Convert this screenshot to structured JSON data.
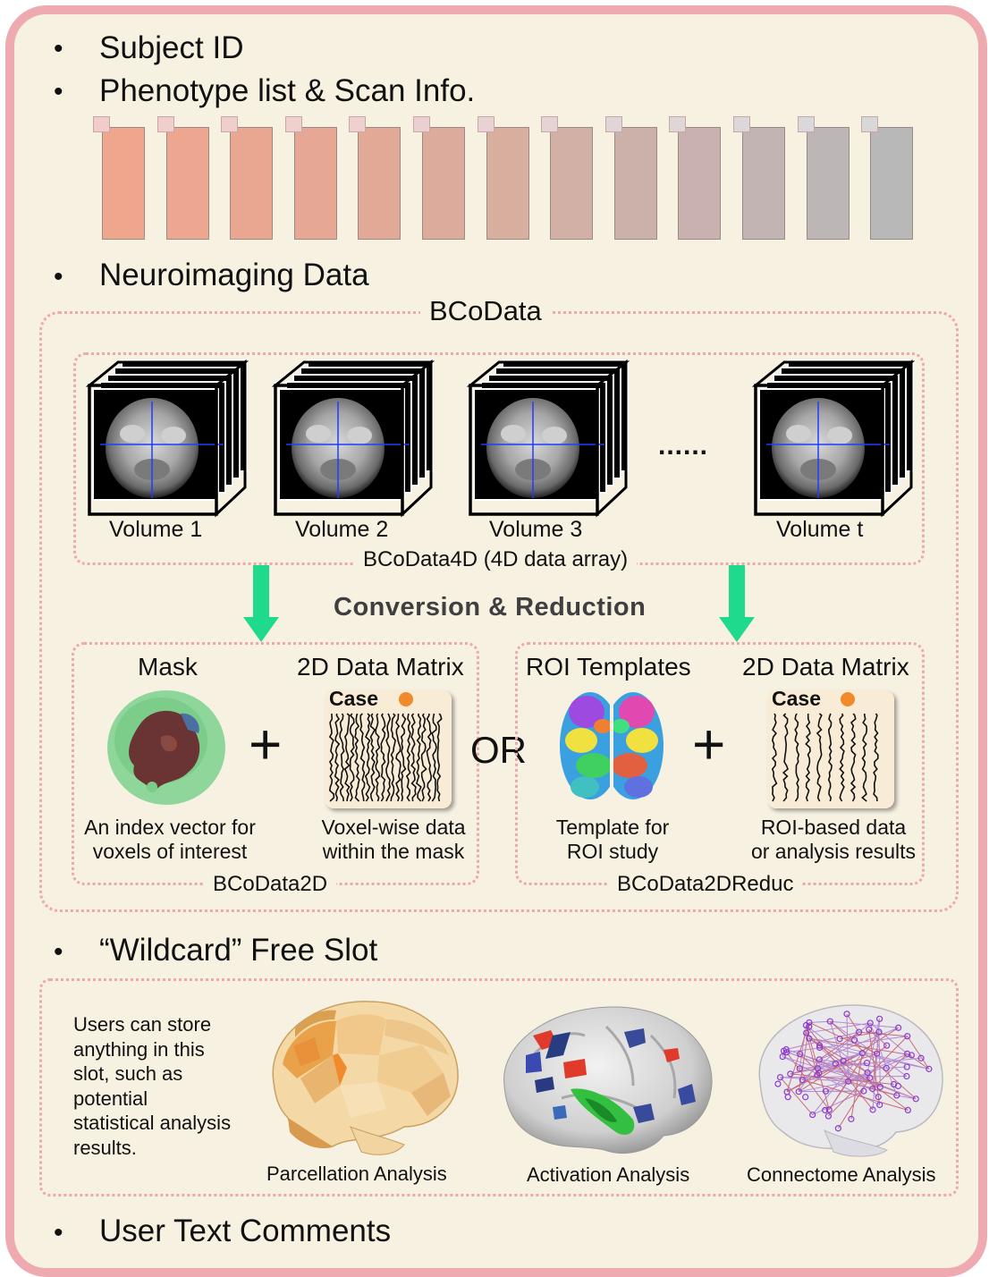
{
  "bullets": {
    "subject_id": "Subject ID",
    "phenotype": "Phenotype list & Scan Info.",
    "neuroimaging": "Neuroimaging Data",
    "wildcard": "“Wildcard” Free Slot",
    "comments": "User Text Comments"
  },
  "phenotype_bars": {
    "count": 13,
    "colors": [
      "#f0a68c",
      "#eda68f",
      "#e9a792",
      "#e6a794",
      "#e2a997",
      "#ddab9c",
      "#d8ae9f",
      "#d2b0a6",
      "#ccb0aa",
      "#c8b1ae",
      "#c2b4b2",
      "#bcb6b6",
      "#b8b8b8"
    ],
    "tab_colors": [
      "#f2cccd",
      "#f2cdcd",
      "#f1cece",
      "#f0cfcf",
      "#eed0d0",
      "#ecd0d1",
      "#e9d2d3",
      "#e6d3d5",
      "#e2d5d7",
      "#dfd6d8",
      "#dcd8da",
      "#d9d9db",
      "#d8d8d8"
    ]
  },
  "bcodata": {
    "title": "BCoData",
    "data4d": {
      "caption": "BCoData4D (4D data array)",
      "volumes": [
        "Volume 1",
        "Volume 2",
        "Volume 3",
        "Volume t"
      ],
      "ellipsis": "......"
    },
    "conversion": "Conversion & Reduction",
    "arrow_color": "#1fd98c",
    "data2d": {
      "caption": "BCoData2D",
      "mask_header": "Mask",
      "matrix_header": "2D Data Matrix",
      "matrix_tag": "Case",
      "plus": "+",
      "mask_desc": [
        "An index vector for",
        "voxels of interest"
      ],
      "matrix_desc": [
        "Voxel-wise data",
        "within the mask"
      ]
    },
    "or_label": "OR",
    "data2dreduc": {
      "caption": "BCoData2DReduc",
      "roi_header": "ROI Templates",
      "matrix_header": "2D Data Matrix",
      "matrix_tag": "Case",
      "plus": "+",
      "roi_desc": [
        "Template for",
        "ROI study"
      ],
      "matrix_desc": [
        "ROI-based data",
        "or analysis results"
      ]
    }
  },
  "wildcard": {
    "description": [
      "Users can store",
      "anything in this",
      "slot, such as",
      "potential",
      "statistical analysis",
      "results."
    ],
    "analyses": [
      "Parcellation Analysis",
      "Activation Analysis",
      "Connectome Analysis"
    ]
  }
}
